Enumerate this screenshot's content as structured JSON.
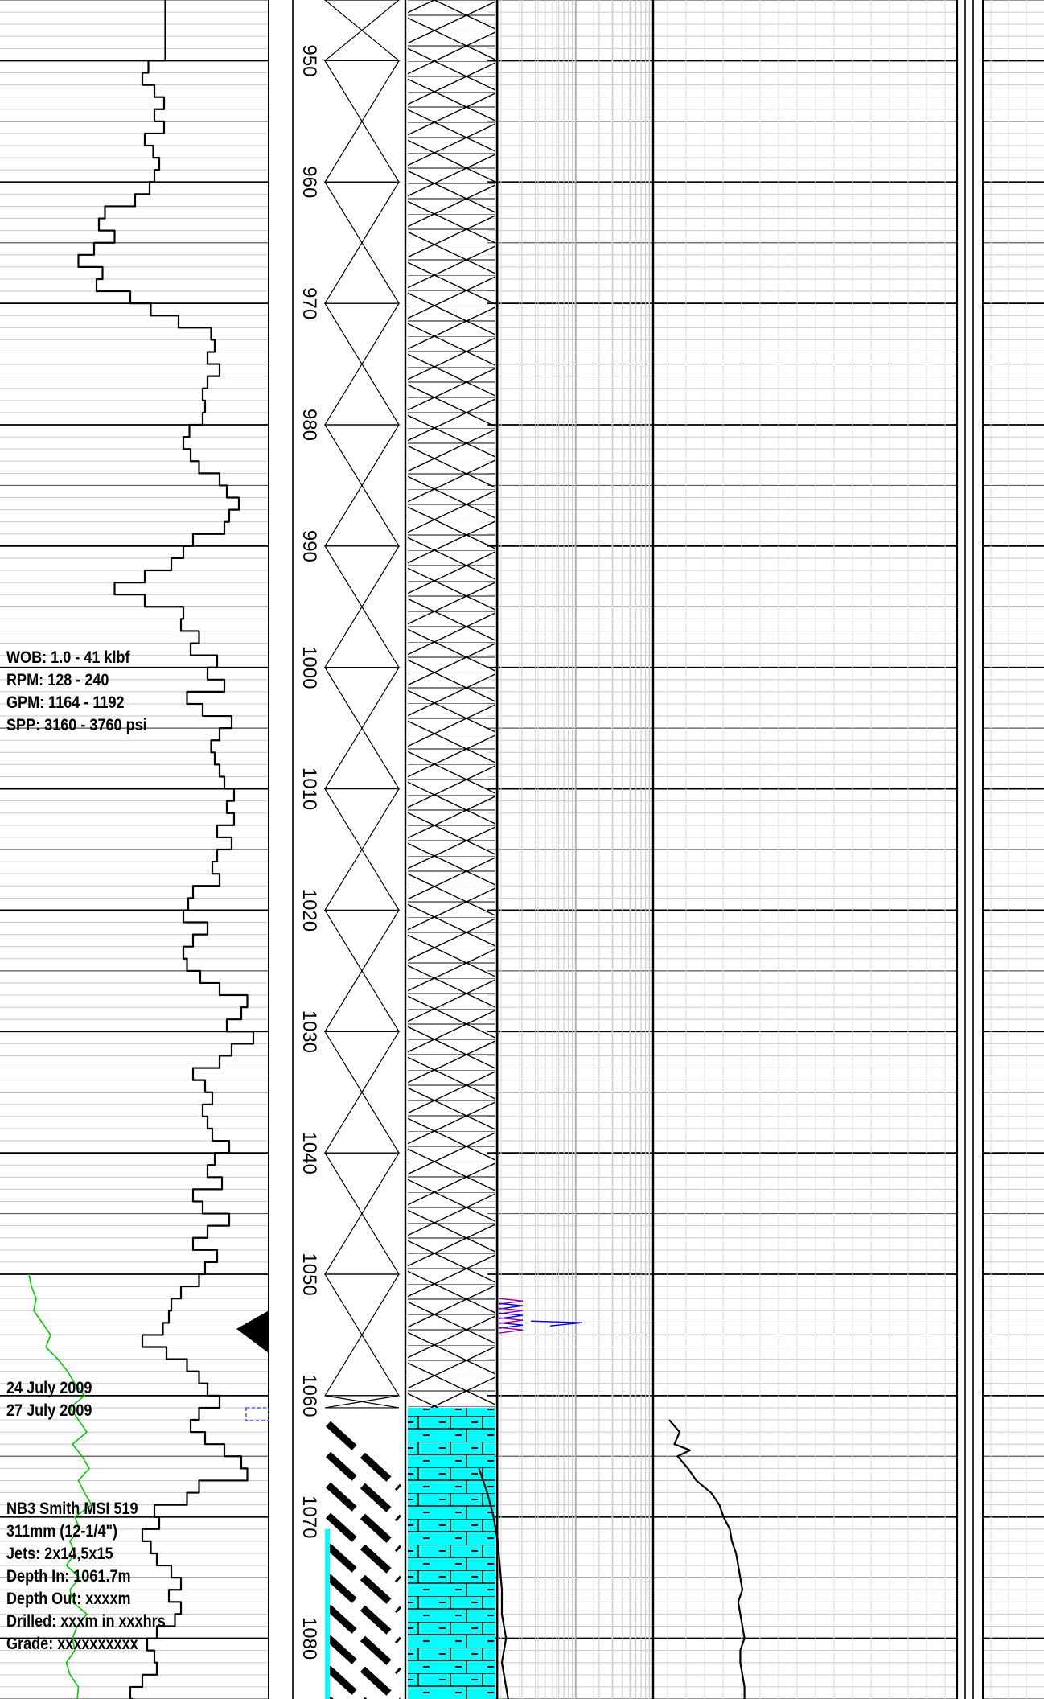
{
  "chart_data": {
    "type": "line",
    "title": "",
    "xlabel": "",
    "ylabel": "",
    "depth_axis": {
      "units": "m",
      "range": [
        945,
        1085
      ],
      "tick_labels": [
        "950",
        "960",
        "970",
        "980",
        "990",
        "1000",
        "1010",
        "1020",
        "1030",
        "1040",
        "1050",
        "1060",
        "1070",
        "1080"
      ]
    },
    "lithology": [
      {
        "from": 945,
        "to": 1061,
        "pattern": "cross-hatch"
      },
      {
        "from": 1061,
        "to": 1085,
        "pattern": "limestone",
        "color": "#00ffff"
      }
    ],
    "series": [
      {
        "color": "#000000",
        "points": [
          [
            945,
            137
          ],
          [
            950,
            137
          ],
          [
            950,
            123
          ],
          [
            951,
            118
          ],
          [
            952,
            128
          ],
          [
            953,
            136
          ],
          [
            954,
            128
          ],
          [
            955,
            136
          ],
          [
            956,
            120
          ],
          [
            957,
            127
          ],
          [
            958,
            132
          ],
          [
            959,
            128
          ],
          [
            960,
            124
          ],
          [
            961,
            112
          ],
          [
            962,
            87
          ],
          [
            963,
            82
          ],
          [
            964,
            95
          ],
          [
            965,
            78
          ],
          [
            966,
            65
          ],
          [
            967,
            85
          ],
          [
            968,
            80
          ],
          [
            969,
            108
          ],
          [
            970,
            125
          ],
          [
            971,
            148
          ],
          [
            972,
            175
          ],
          [
            973,
            178
          ],
          [
            974,
            172
          ],
          [
            975,
            182
          ],
          [
            976,
            172
          ],
          [
            977,
            168
          ],
          [
            978,
            170
          ],
          [
            979,
            168
          ],
          [
            980,
            157
          ],
          [
            981,
            152
          ],
          [
            982,
            158
          ],
          [
            983,
            165
          ],
          [
            984,
            182
          ],
          [
            985,
            188
          ],
          [
            986,
            198
          ],
          [
            987,
            190
          ],
          [
            988,
            186
          ],
          [
            989,
            160
          ],
          [
            990,
            152
          ],
          [
            991,
            142
          ],
          [
            992,
            120
          ],
          [
            993,
            95
          ],
          [
            994,
            120
          ],
          [
            995,
            152
          ],
          [
            996,
            150
          ],
          [
            997,
            165
          ],
          [
            998,
            158
          ],
          [
            999,
            180
          ],
          [
            1000,
            172
          ],
          [
            1001,
            186
          ],
          [
            1002,
            155
          ],
          [
            1003,
            168
          ],
          [
            1004,
            192
          ],
          [
            1005,
            182
          ],
          [
            1006,
            175
          ],
          [
            1007,
            178
          ],
          [
            1008,
            182
          ],
          [
            1009,
            186
          ],
          [
            1010,
            194
          ],
          [
            1011,
            188
          ],
          [
            1012,
            194
          ],
          [
            1013,
            180
          ],
          [
            1014,
            192
          ],
          [
            1015,
            180
          ],
          [
            1016,
            176
          ],
          [
            1017,
            182
          ],
          [
            1018,
            160
          ],
          [
            1019,
            156
          ],
          [
            1020,
            152
          ],
          [
            1021,
            172
          ],
          [
            1022,
            160
          ],
          [
            1023,
            152
          ],
          [
            1024,
            155
          ],
          [
            1025,
            166
          ],
          [
            1026,
            182
          ],
          [
            1027,
            205
          ],
          [
            1028,
            200
          ],
          [
            1029,
            188
          ],
          [
            1030,
            210
          ],
          [
            1031,
            192
          ],
          [
            1032,
            182
          ],
          [
            1033,
            160
          ],
          [
            1034,
            170
          ],
          [
            1035,
            176
          ],
          [
            1036,
            168
          ],
          [
            1037,
            172
          ],
          [
            1038,
            176
          ],
          [
            1039,
            190
          ],
          [
            1040,
            178
          ],
          [
            1041,
            172
          ],
          [
            1042,
            184
          ],
          [
            1043,
            160
          ],
          [
            1044,
            168
          ],
          [
            1045,
            190
          ],
          [
            1046,
            172
          ],
          [
            1047,
            160
          ],
          [
            1048,
            180
          ],
          [
            1049,
            170
          ],
          [
            1050,
            165
          ],
          [
            1051,
            150
          ],
          [
            1052,
            142
          ],
          [
            1053,
            140
          ],
          [
            1054,
            135
          ],
          [
            1055,
            118
          ],
          [
            1056,
            138
          ],
          [
            1057,
            155
          ],
          [
            1058,
            165
          ],
          [
            1059,
            172
          ],
          [
            1060,
            182
          ],
          [
            1061,
            165
          ],
          [
            1062,
            158
          ],
          [
            1063,
            170
          ],
          [
            1064,
            186
          ],
          [
            1065,
            200
          ],
          [
            1066,
            205
          ],
          [
            1067,
            165
          ],
          [
            1068,
            155
          ],
          [
            1069,
            128
          ],
          [
            1070,
            132
          ],
          [
            1071,
            118
          ],
          [
            1072,
            125
          ],
          [
            1073,
            130
          ],
          [
            1074,
            142
          ],
          [
            1075,
            150
          ],
          [
            1076,
            140
          ],
          [
            1077,
            150
          ],
          [
            1078,
            145
          ],
          [
            1079,
            130
          ],
          [
            1080,
            122
          ],
          [
            1081,
            128
          ],
          [
            1082,
            130
          ],
          [
            1083,
            118
          ],
          [
            1084,
            108
          ],
          [
            1085,
            110
          ]
        ]
      },
      {
        "color": "#00cc00",
        "points": [
          [
            1050,
            24
          ],
          [
            1051,
            26
          ],
          [
            1052,
            30
          ],
          [
            1053,
            28
          ],
          [
            1054,
            35
          ],
          [
            1055,
            42
          ],
          [
            1056,
            38
          ],
          [
            1057,
            48
          ],
          [
            1058,
            56
          ],
          [
            1059,
            62
          ],
          [
            1060,
            70
          ],
          [
            1061,
            58
          ],
          [
            1062,
            65
          ],
          [
            1063,
            72
          ],
          [
            1064,
            60
          ],
          [
            1065,
            68
          ],
          [
            1066,
            74
          ],
          [
            1067,
            65
          ],
          [
            1068,
            70
          ],
          [
            1069,
            76
          ],
          [
            1070,
            62
          ],
          [
            1071,
            66
          ],
          [
            1072,
            58
          ],
          [
            1073,
            62
          ],
          [
            1074,
            55
          ],
          [
            1075,
            66
          ],
          [
            1076,
            58
          ],
          [
            1077,
            60
          ],
          [
            1078,
            72
          ],
          [
            1079,
            64
          ],
          [
            1080,
            60
          ],
          [
            1081,
            62
          ],
          [
            1082,
            55
          ],
          [
            1083,
            58
          ],
          [
            1084,
            65
          ],
          [
            1085,
            64
          ]
        ]
      },
      {
        "color": "#000000",
        "points": [
          [
            1062,
            640
          ],
          [
            1063,
            650
          ],
          [
            1064,
            645
          ],
          [
            1064.5,
            660
          ],
          [
            1065,
            648
          ],
          [
            1066,
            658
          ],
          [
            1067,
            666
          ],
          [
            1068,
            680
          ],
          [
            1069,
            688
          ],
          [
            1070,
            692
          ],
          [
            1071,
            698
          ],
          [
            1072,
            700
          ],
          [
            1073,
            704
          ],
          [
            1074,
            706
          ],
          [
            1075,
            708
          ],
          [
            1076,
            710
          ],
          [
            1077,
            706
          ],
          [
            1078,
            708
          ],
          [
            1079,
            710
          ],
          [
            1080,
            712
          ],
          [
            1081,
            708
          ],
          [
            1082,
            708
          ],
          [
            1083,
            710
          ],
          [
            1084,
            712
          ],
          [
            1085,
            712
          ]
        ]
      },
      {
        "color": "#000000",
        "points": [
          [
            1066,
            458
          ],
          [
            1068,
            466
          ],
          [
            1070,
            472
          ],
          [
            1072,
            476
          ],
          [
            1074,
            478
          ],
          [
            1076,
            480
          ],
          [
            1078,
            480
          ],
          [
            1080,
            484
          ],
          [
            1082,
            480
          ],
          [
            1084,
            484
          ],
          [
            1085,
            486
          ]
        ]
      }
    ]
  },
  "annotations": {
    "drilling_params": [
      "WOB: 1.0 - 41 klbf",
      "RPM: 128 - 240",
      "GPM: 1164 - 1192",
      "SPP: 3160 - 3760 psi"
    ],
    "dates": [
      "24 July 2009",
      "27 July 2009"
    ],
    "bit_info": [
      "NB3 Smith MSI 519",
      "311mm (12-1/4\")",
      "Jets: 2x14,5x15",
      "Depth In: 1061.7m",
      "Depth Out: xxxxm",
      "Drilled: xxxm in xxxhrs",
      "Grade: xxxxxxxxxx"
    ]
  }
}
